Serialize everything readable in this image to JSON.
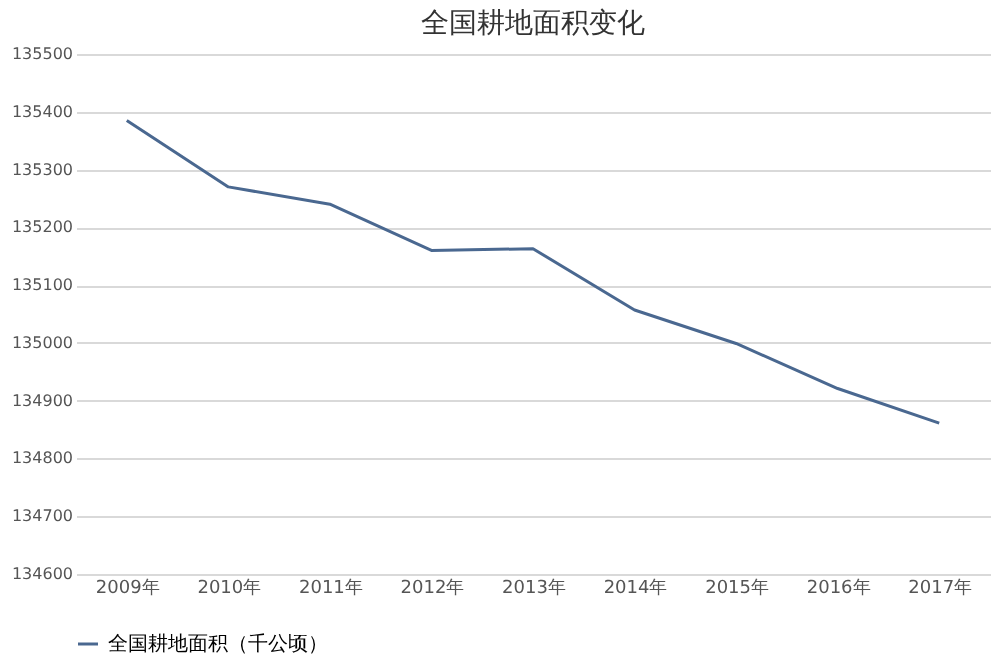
{
  "chart_data": {
    "type": "line",
    "title": "全国耕地面积变化",
    "categories": [
      "2009年",
      "2010年",
      "2011年",
      "2012年",
      "2013年",
      "2014年",
      "2015年",
      "2016年",
      "2017年"
    ],
    "series": [
      {
        "name": "全国耕地面积（千公顷）",
        "color": "#4a6890",
        "values": [
          135385,
          135270,
          135240,
          135160,
          135163,
          135057,
          134999,
          134921,
          134861
        ]
      }
    ],
    "ylim": [
      134600,
      135500
    ],
    "yticks": [
      134600,
      134700,
      134800,
      134900,
      135000,
      135100,
      135200,
      135300,
      135400,
      135500
    ],
    "grid": "y",
    "legend": "bottom",
    "marker": "none",
    "line_style": "solid"
  }
}
